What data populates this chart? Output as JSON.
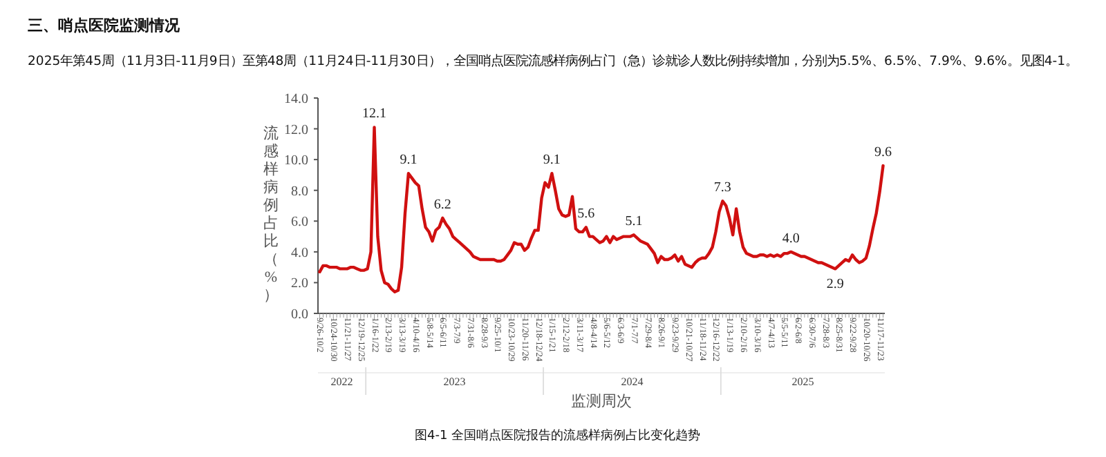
{
  "chart_data": {
    "type": "line",
    "title": "三、哨点医院监测情况",
    "subtitle": "2025年第45周（11月3日-11月9日）至第48周（11月24日-11月30日），全国哨点医院流感样病例占门（急）诊就诊人数比例持续增加，分别为5.5%、6.5%、7.9%、9.6%。见图4-1。",
    "xlabel": "监测周次",
    "ylabel": "流感样病例占比（%）",
    "annotations": [
      "2022",
      "2023",
      "2024",
      "2025",
      "图4-1 全国哨点医院报告的流感样病例占比变化趋势"
    ],
    "categories": [
      "9/26-10/2",
      null,
      null,
      null,
      "10/24-10/30",
      null,
      null,
      null,
      "11/21-11/27",
      null,
      null,
      null,
      "12/19-12/25",
      null,
      null,
      null,
      "1/16-1/22",
      null,
      null,
      null,
      "2/13-2/19",
      null,
      null,
      null,
      "3/13-3/19",
      null,
      null,
      null,
      "4/10-4/16",
      null,
      null,
      null,
      "5/8-5/14",
      null,
      null,
      null,
      "6/5-6/11",
      null,
      null,
      null,
      "7/3-7/9",
      null,
      null,
      null,
      "7/31-8/6",
      null,
      null,
      null,
      "8/28-9/3",
      null,
      null,
      null,
      "9/25-10/1",
      null,
      null,
      null,
      "10/23-10/29",
      null,
      null,
      null,
      "11/20-11/26",
      null,
      null,
      null,
      "12/18-12/24",
      null,
      null,
      null,
      "1/15-1/21",
      null,
      null,
      null,
      "2/12-2/18",
      null,
      null,
      null,
      "3/11-3/17",
      null,
      null,
      null,
      "4/8-4/14",
      null,
      null,
      null,
      "5/6-5/12",
      null,
      null,
      null,
      "6/3-6/9",
      null,
      null,
      null,
      "7/1-7/7",
      null,
      null,
      null,
      "7/29-8/4",
      null,
      null,
      null,
      "8/26-9/1",
      null,
      null,
      null,
      "9/23-9/29",
      null,
      null,
      null,
      "10/21-10/27",
      null,
      null,
      null,
      "11/18-11/24",
      null,
      null,
      null,
      "12/16-12/22",
      null,
      null,
      null,
      "1/13-1/19",
      null,
      null,
      null,
      "2/10-2/16",
      null,
      null,
      null,
      "3/10-3/16",
      null,
      null,
      null,
      "4/7-4/13",
      null,
      null,
      null,
      "5/5-5/11",
      null,
      null,
      null,
      "6/2-6/8",
      null,
      null,
      null,
      "6/30-7/6",
      null,
      null,
      null,
      "7/28-8/3",
      null,
      null,
      null,
      "8/25-8/31",
      null,
      null,
      null,
      "9/22-9/28",
      null,
      null,
      null,
      "10/20-10/26",
      null,
      null,
      null,
      "11/17-11/23",
      null
    ],
    "series": [
      {
        "color": "#d01010",
        "values": [
          2.7,
          3.1,
          3.1,
          3.0,
          3.0,
          3.0,
          2.9,
          2.9,
          2.9,
          3.0,
          3.0,
          2.9,
          2.8,
          2.8,
          2.9,
          4.0,
          12.1,
          5.0,
          2.8,
          2.0,
          1.9,
          1.6,
          1.4,
          1.5,
          3.0,
          6.5,
          9.1,
          8.8,
          8.5,
          8.3,
          6.8,
          5.6,
          5.3,
          4.7,
          5.4,
          5.6,
          6.2,
          5.8,
          5.5,
          5.0,
          4.8,
          4.6,
          4.4,
          4.2,
          4.0,
          3.7,
          3.6,
          3.5,
          3.5,
          3.5,
          3.5,
          3.5,
          3.4,
          3.4,
          3.5,
          3.8,
          4.1,
          4.6,
          4.5,
          4.5,
          4.1,
          4.3,
          4.9,
          5.4,
          5.4,
          7.5,
          8.5,
          8.2,
          9.1,
          8.0,
          6.8,
          6.4,
          6.3,
          6.4,
          7.6,
          5.5,
          5.3,
          5.3,
          5.6,
          5.0,
          5.0,
          4.8,
          4.6,
          4.7,
          5.0,
          4.6,
          5.0,
          4.8,
          4.9,
          5.0,
          5.0,
          5.0,
          5.1,
          4.9,
          4.7,
          4.6,
          4.5,
          4.2,
          3.9,
          3.3,
          3.7,
          3.5,
          3.5,
          3.6,
          3.8,
          3.4,
          3.7,
          3.2,
          3.1,
          3.0,
          3.3,
          3.5,
          3.6,
          3.6,
          3.9,
          4.3,
          5.3,
          6.6,
          7.3,
          7.0,
          6.2,
          5.1,
          6.8,
          5.3,
          4.3,
          3.9,
          3.8,
          3.7,
          3.7,
          3.8,
          3.8,
          3.7,
          3.8,
          3.7,
          3.8,
          3.7,
          3.9,
          3.9,
          4.0,
          3.9,
          3.8,
          3.7,
          3.7,
          3.6,
          3.5,
          3.4,
          3.3,
          3.3,
          3.2,
          3.1,
          3.0,
          2.9,
          3.1,
          3.3,
          3.5,
          3.4,
          3.8,
          3.5,
          3.3,
          3.4,
          3.6,
          4.4,
          5.5,
          6.5,
          7.9,
          9.6
        ],
        "value_labels": [
          null,
          null,
          null,
          null,
          null,
          null,
          null,
          null,
          null,
          null,
          null,
          null,
          null,
          null,
          null,
          null,
          "12.1",
          null,
          null,
          null,
          null,
          null,
          null,
          null,
          null,
          null,
          "9.1",
          null,
          null,
          null,
          null,
          null,
          null,
          null,
          null,
          null,
          "6.2",
          null,
          null,
          null,
          null,
          null,
          null,
          null,
          null,
          null,
          null,
          null,
          null,
          null,
          null,
          null,
          null,
          null,
          null,
          null,
          null,
          null,
          null,
          null,
          null,
          null,
          null,
          null,
          null,
          null,
          null,
          null,
          "9.1",
          null,
          null,
          null,
          null,
          null,
          null,
          null,
          null,
          null,
          "5.6",
          null,
          null,
          null,
          null,
          null,
          null,
          null,
          null,
          null,
          null,
          null,
          null,
          null,
          "5.1",
          null,
          null,
          null,
          null,
          null,
          null,
          null,
          null,
          null,
          null,
          null,
          null,
          null,
          null,
          null,
          null,
          null,
          null,
          null,
          null,
          null,
          null,
          null,
          null,
          null,
          "7.3",
          null,
          null,
          null,
          null,
          null,
          null,
          null,
          null,
          null,
          null,
          null,
          null,
          null,
          null,
          null,
          null,
          null,
          null,
          null,
          "4.0",
          null,
          null,
          null,
          null,
          null,
          null,
          null,
          null,
          null,
          null,
          null,
          null,
          "2.9",
          null,
          null,
          null,
          null,
          null,
          null,
          null,
          null,
          null,
          null,
          null,
          null,
          null,
          "9.6"
        ]
      }
    ],
    "ylim": [
      0,
      14
    ],
    "yticks": [
      {
        "value": 0,
        "label": "0.0"
      },
      {
        "value": 2,
        "label": "2.0"
      },
      {
        "value": 4,
        "label": "4.0"
      },
      {
        "value": 6,
        "label": "6.0"
      },
      {
        "value": 8,
        "label": "8.0"
      },
      {
        "value": 10,
        "label": "10.0"
      },
      {
        "value": 12,
        "label": "12.0"
      },
      {
        "value": 14,
        "label": "14.0"
      }
    ]
  }
}
